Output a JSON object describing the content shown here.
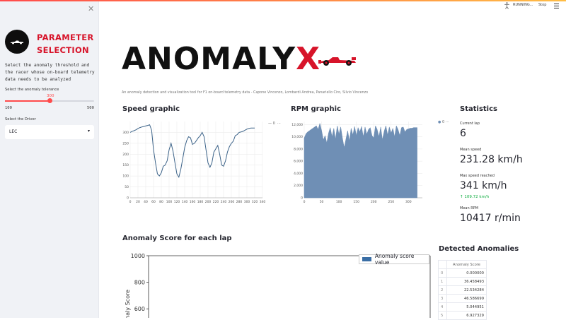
{
  "sidebar": {
    "title_line1": "PARAMETER",
    "title_line2": "SELECTION",
    "description": "Select the anomaly threshold and the racer whose on-board telemetry data needs to be analyzed",
    "tolerance_label": "Select the anomaly tolerance",
    "slider": {
      "value": "300",
      "min": "100",
      "max": "500",
      "fraction": 0.5
    },
    "driver_label": "Select the Driver",
    "driver_value": "LEC"
  },
  "header": {
    "running": "RUNNING...",
    "stop": "Stop"
  },
  "main": {
    "title_text": "ANOMALY",
    "title_x": "X",
    "subtitle": "An anomaly detection and visualization tool for F1 on-board telemetry data - Capone Vincenzo, Lombardi Andrea, Panariello Ciro, Silvio Vincenzo"
  },
  "speed_chart": {
    "heading": "Speed graphic",
    "legend": "0",
    "chart_data": {
      "type": "line",
      "title": "",
      "xlim": [
        0,
        340
      ],
      "ylim": [
        0,
        350
      ],
      "xticks": [
        "0",
        "20",
        "40",
        "60",
        "80",
        "100",
        "120",
        "140",
        "160",
        "180",
        "200",
        "220",
        "240",
        "260",
        "280",
        "300",
        "320",
        "340"
      ],
      "yticks": [
        "0",
        "50",
        "100",
        "150",
        "200",
        "250",
        "300"
      ],
      "x": [
        0,
        5,
        10,
        15,
        20,
        25,
        30,
        35,
        40,
        45,
        50,
        55,
        60,
        65,
        70,
        75,
        80,
        85,
        90,
        95,
        100,
        105,
        110,
        115,
        120,
        125,
        130,
        135,
        140,
        145,
        150,
        155,
        160,
        165,
        170,
        175,
        180,
        185,
        190,
        195,
        200,
        205,
        210,
        215,
        220,
        225,
        230,
        235,
        240,
        245,
        250,
        255,
        260,
        265,
        270,
        275,
        280,
        285,
        290,
        295,
        300,
        305,
        310,
        315,
        320
      ],
      "y": [
        300,
        305,
        308,
        312,
        318,
        322,
        325,
        327,
        330,
        332,
        335,
        310,
        220,
        160,
        110,
        100,
        115,
        145,
        150,
        170,
        220,
        250,
        215,
        160,
        110,
        95,
        130,
        180,
        230,
        262,
        280,
        275,
        245,
        250,
        262,
        275,
        285,
        300,
        280,
        220,
        160,
        140,
        160,
        210,
        225,
        240,
        200,
        150,
        145,
        170,
        210,
        235,
        250,
        260,
        285,
        290,
        300,
        302,
        305,
        310,
        315,
        318,
        320,
        320,
        320
      ]
    }
  },
  "rpm_chart": {
    "heading": "RPM graphic",
    "legend": "0",
    "chart_data": {
      "type": "area",
      "title": "",
      "xlim": [
        0,
        340
      ],
      "ylim": [
        0,
        12500
      ],
      "xticks": [
        "0",
        "50",
        "100",
        "150",
        "200",
        "250",
        "300"
      ],
      "yticks": [
        "0",
        "2,000",
        "4,000",
        "6,000",
        "8,000",
        "10,000",
        "12,000"
      ],
      "x": [
        0,
        5,
        10,
        15,
        20,
        25,
        30,
        35,
        40,
        45,
        50,
        55,
        60,
        65,
        70,
        75,
        80,
        85,
        90,
        95,
        100,
        105,
        110,
        115,
        120,
        125,
        130,
        135,
        140,
        145,
        150,
        155,
        160,
        165,
        170,
        175,
        180,
        185,
        190,
        195,
        200,
        205,
        210,
        215,
        220,
        225,
        230,
        235,
        240,
        245,
        250,
        255,
        260,
        265,
        270,
        275,
        280,
        285,
        290,
        295,
        300,
        305,
        310,
        315,
        320,
        325
      ],
      "y": [
        9800,
        10500,
        10800,
        11000,
        11200,
        11400,
        11600,
        11800,
        11200,
        12200,
        11000,
        9500,
        10200,
        9000,
        10600,
        11500,
        10000,
        11400,
        9600,
        11800,
        10400,
        11600,
        9800,
        8200,
        9600,
        11000,
        9300,
        11400,
        10300,
        11700,
        10200,
        11500,
        10800,
        11700,
        10000,
        11600,
        10400,
        11200,
        11500,
        10200,
        9800,
        11800,
        11200,
        10000,
        11600,
        9500,
        10900,
        11800,
        10300,
        11600,
        10600,
        11400,
        10000,
        11800,
        11200,
        10200,
        11500,
        11600,
        10800,
        11200,
        11300,
        11400,
        11400,
        11500,
        11500,
        11500
      ]
    }
  },
  "stats": {
    "heading": "Statistics",
    "current_lap_label": "Current lap",
    "current_lap": "6",
    "mean_speed_label": "Mean speed",
    "mean_speed": "231.28 km/h",
    "max_speed_label": "Max speed reached",
    "max_speed": "341 km/h",
    "max_speed_delta": "109.72 km/h",
    "mean_rpm_label": "Mean RPM",
    "mean_rpm": "10417 r/min"
  },
  "anomaly_chart": {
    "heading": "Anomaly Score for each lap",
    "chart_data": {
      "type": "bar",
      "title": "",
      "ylabel": "Anomaly Score",
      "ylim": [
        0,
        1000
      ],
      "yticks": [
        "1000",
        "800",
        "600"
      ],
      "series": [
        {
          "name": "Anomaly score value",
          "values": []
        }
      ]
    }
  },
  "anomalies": {
    "heading": "Detected Anomalies",
    "column": "Anomaly Score",
    "rows": [
      {
        "idx": "0",
        "val": "0.000000"
      },
      {
        "idx": "1",
        "val": "36.458493"
      },
      {
        "idx": "2",
        "val": "22.534284"
      },
      {
        "idx": "3",
        "val": "46.586699"
      },
      {
        "idx": "4",
        "val": "5.044951"
      },
      {
        "idx": "5",
        "val": "6.927329"
      }
    ]
  },
  "colors": {
    "accent": "#ff4b4b",
    "brand_red": "#d7142a",
    "line": "#3b6288",
    "area": "#6f8fb5",
    "bar": "#3a6ea5",
    "delta_green": "#09ab3b"
  },
  "icons": [
    "close-icon",
    "f1-car-icon",
    "running-icon",
    "hamburger-icon",
    "chevron-down-icon",
    "arrow-up-icon"
  ]
}
